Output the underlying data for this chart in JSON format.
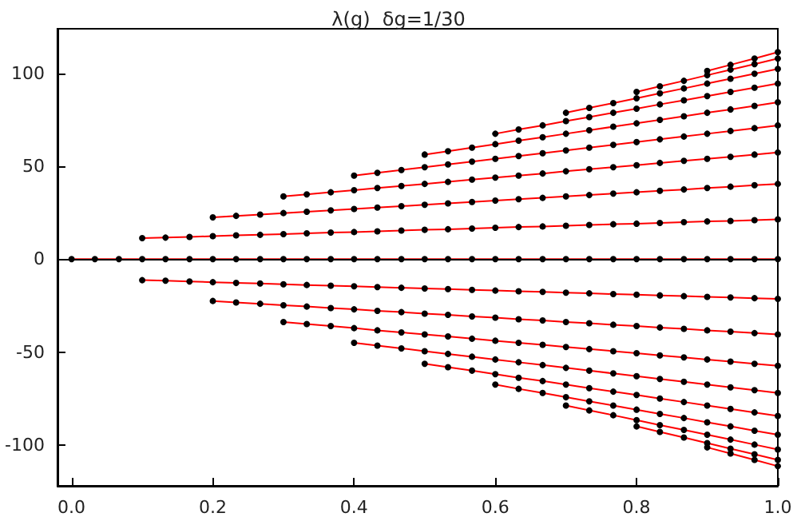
{
  "chart_data": {
    "type": "line",
    "title": "λ(g)  δg=1/30",
    "marker": "circle",
    "line_style": "solid",
    "grid": false,
    "x": [
      0,
      0.033,
      0.067,
      0.1,
      0.133,
      0.167,
      0.2,
      0.233,
      0.267,
      0.3,
      0.333,
      0.367,
      0.4,
      0.433,
      0.467,
      0.5,
      0.533,
      0.567,
      0.6,
      0.633,
      0.667,
      0.7,
      0.733,
      0.767,
      0.8,
      0.833,
      0.867,
      0.9,
      0.933,
      0.967,
      1
    ],
    "xlim": [
      -0.02,
      1.0
    ],
    "xticks": [
      {
        "value": 0,
        "label": "0.0"
      },
      0.2,
      0.4,
      0.6,
      0.8,
      {
        "value": 1,
        "label": "1.0"
      }
    ],
    "ylim": [
      -122,
      124
    ],
    "yticks": [
      -100,
      -50,
      0,
      50,
      100
    ],
    "ref_lines": [
      {
        "axis": "y",
        "value": 0,
        "color": "#000000"
      }
    ],
    "series": [
      {
        "color": "#ff0000",
        "values": [
          0,
          0,
          0,
          0,
          0,
          0,
          0,
          0,
          0,
          0,
          0,
          0,
          0,
          0,
          0,
          0,
          0,
          0,
          0,
          0,
          0,
          0,
          0,
          0,
          0,
          0,
          0,
          0,
          0,
          0,
          0
        ]
      },
      {
        "color": "#ff0000",
        "values": [
          null,
          null,
          null,
          11.3,
          11.6,
          12,
          12.4,
          12.8,
          13.1,
          13.5,
          13.9,
          14.3,
          14.6,
          15,
          15.4,
          15.8,
          16.1,
          16.5,
          16.9,
          17.3,
          17.6,
          18,
          18.4,
          18.8,
          19.1,
          19.5,
          19.9,
          20.3,
          20.6,
          21,
          21.4
        ]
      },
      {
        "color": "#ff0000",
        "values": [
          null,
          null,
          null,
          null,
          null,
          null,
          22.5,
          23.3,
          24,
          24.8,
          25.5,
          26.3,
          27,
          27.8,
          28.5,
          29.3,
          30,
          30.8,
          31.5,
          32.3,
          33,
          33.8,
          34.5,
          35.3,
          36,
          36.8,
          37.5,
          38.3,
          39,
          39.8,
          40.5
        ]
      },
      {
        "color": "#ff0000",
        "values": [
          null,
          null,
          null,
          null,
          null,
          null,
          null,
          null,
          null,
          33.8,
          34.9,
          36,
          37.1,
          38.3,
          39.4,
          40.5,
          41.6,
          42.8,
          43.9,
          45,
          46.1,
          47.3,
          48.4,
          49.5,
          50.6,
          51.8,
          52.9,
          54,
          55.1,
          56.3,
          57.4
        ]
      },
      {
        "color": "#ff0000",
        "values": [
          null,
          null,
          null,
          null,
          null,
          null,
          null,
          null,
          null,
          null,
          null,
          null,
          45,
          46.5,
          48,
          49.5,
          51,
          52.5,
          54,
          55.5,
          57,
          58.5,
          60,
          61.5,
          63,
          64.5,
          66,
          67.5,
          69,
          70.5,
          72
        ]
      },
      {
        "color": "#ff0000",
        "values": [
          null,
          null,
          null,
          null,
          null,
          null,
          null,
          null,
          null,
          null,
          null,
          null,
          null,
          null,
          null,
          56.3,
          58.1,
          60,
          61.9,
          63.8,
          65.6,
          67.5,
          69.4,
          71.3,
          73.1,
          75,
          76.9,
          78.8,
          80.6,
          82.5,
          84.4
        ]
      },
      {
        "color": "#ff0000",
        "values": [
          null,
          null,
          null,
          null,
          null,
          null,
          null,
          null,
          null,
          null,
          null,
          null,
          null,
          null,
          null,
          null,
          null,
          null,
          67.5,
          69.8,
          72,
          74.3,
          76.5,
          78.8,
          81,
          83.3,
          85.5,
          87.8,
          90,
          92.3,
          94.5
        ]
      },
      {
        "color": "#ff0000",
        "values": [
          null,
          null,
          null,
          null,
          null,
          null,
          null,
          null,
          null,
          null,
          null,
          null,
          null,
          null,
          null,
          null,
          null,
          null,
          null,
          null,
          null,
          78.8,
          81.4,
          84,
          86.6,
          89.3,
          91.9,
          94.5,
          97.1,
          99.8,
          102.4
        ]
      },
      {
        "color": "#ff0000",
        "values": [
          null,
          null,
          null,
          null,
          null,
          null,
          null,
          null,
          null,
          null,
          null,
          null,
          null,
          null,
          null,
          null,
          null,
          null,
          null,
          null,
          null,
          null,
          null,
          null,
          90,
          93,
          96,
          99,
          102,
          105,
          108
        ]
      },
      {
        "color": "#ff0000",
        "values": [
          null,
          null,
          null,
          null,
          null,
          null,
          null,
          null,
          null,
          null,
          null,
          null,
          null,
          null,
          null,
          null,
          null,
          null,
          null,
          null,
          null,
          null,
          null,
          null,
          null,
          null,
          null,
          101.3,
          104.6,
          108,
          111.4
        ]
      },
      {
        "color": "#ff0000",
        "values": [
          null,
          null,
          null,
          -11.3,
          -11.6,
          -12,
          -12.4,
          -12.8,
          -13.1,
          -13.5,
          -13.9,
          -14.3,
          -14.6,
          -15,
          -15.4,
          -15.8,
          -16.1,
          -16.5,
          -16.9,
          -17.3,
          -17.6,
          -18,
          -18.4,
          -18.8,
          -19.1,
          -19.5,
          -19.9,
          -20.3,
          -20.6,
          -21,
          -21.4
        ]
      },
      {
        "color": "#ff0000",
        "values": [
          null,
          null,
          null,
          null,
          null,
          null,
          -22.5,
          -23.3,
          -24,
          -24.8,
          -25.5,
          -26.3,
          -27,
          -27.8,
          -28.5,
          -29.3,
          -30,
          -30.8,
          -31.5,
          -32.3,
          -33,
          -33.8,
          -34.5,
          -35.3,
          -36,
          -36.8,
          -37.5,
          -38.3,
          -39,
          -39.8,
          -40.5
        ]
      },
      {
        "color": "#ff0000",
        "values": [
          null,
          null,
          null,
          null,
          null,
          null,
          null,
          null,
          null,
          -33.8,
          -34.9,
          -36,
          -37.1,
          -38.3,
          -39.4,
          -40.5,
          -41.6,
          -42.8,
          -43.9,
          -45,
          -46.1,
          -47.3,
          -48.4,
          -49.5,
          -50.6,
          -51.8,
          -52.9,
          -54,
          -55.1,
          -56.3,
          -57.4
        ]
      },
      {
        "color": "#ff0000",
        "values": [
          null,
          null,
          null,
          null,
          null,
          null,
          null,
          null,
          null,
          null,
          null,
          null,
          -45,
          -46.5,
          -48,
          -49.5,
          -51,
          -52.5,
          -54,
          -55.5,
          -57,
          -58.5,
          -60,
          -61.5,
          -63,
          -64.5,
          -66,
          -67.5,
          -69,
          -70.5,
          -72
        ]
      },
      {
        "color": "#ff0000",
        "values": [
          null,
          null,
          null,
          null,
          null,
          null,
          null,
          null,
          null,
          null,
          null,
          null,
          null,
          null,
          null,
          -56.3,
          -58.1,
          -60,
          -61.9,
          -63.8,
          -65.6,
          -67.5,
          -69.4,
          -71.3,
          -73.1,
          -75,
          -76.9,
          -78.8,
          -80.6,
          -82.5,
          -84.4
        ]
      },
      {
        "color": "#ff0000",
        "values": [
          null,
          null,
          null,
          null,
          null,
          null,
          null,
          null,
          null,
          null,
          null,
          null,
          null,
          null,
          null,
          null,
          null,
          null,
          -67.5,
          -69.8,
          -72,
          -74.3,
          -76.5,
          -78.8,
          -81,
          -83.3,
          -85.5,
          -87.8,
          -90,
          -92.3,
          -94.5
        ]
      },
      {
        "color": "#ff0000",
        "values": [
          null,
          null,
          null,
          null,
          null,
          null,
          null,
          null,
          null,
          null,
          null,
          null,
          null,
          null,
          null,
          null,
          null,
          null,
          null,
          null,
          null,
          -78.8,
          -81.4,
          -84,
          -86.6,
          -89.3,
          -91.9,
          -94.5,
          -97.1,
          -99.8,
          -102.4
        ]
      },
      {
        "color": "#ff0000",
        "values": [
          null,
          null,
          null,
          null,
          null,
          null,
          null,
          null,
          null,
          null,
          null,
          null,
          null,
          null,
          null,
          null,
          null,
          null,
          null,
          null,
          null,
          null,
          null,
          null,
          -90,
          -93,
          -96,
          -99,
          -102,
          -105,
          -108
        ]
      },
      {
        "color": "#ff0000",
        "values": [
          null,
          null,
          null,
          null,
          null,
          null,
          null,
          null,
          null,
          null,
          null,
          null,
          null,
          null,
          null,
          null,
          null,
          null,
          null,
          null,
          null,
          null,
          null,
          null,
          null,
          null,
          null,
          -101.3,
          -104.6,
          -108,
          -111.4
        ]
      }
    ]
  }
}
